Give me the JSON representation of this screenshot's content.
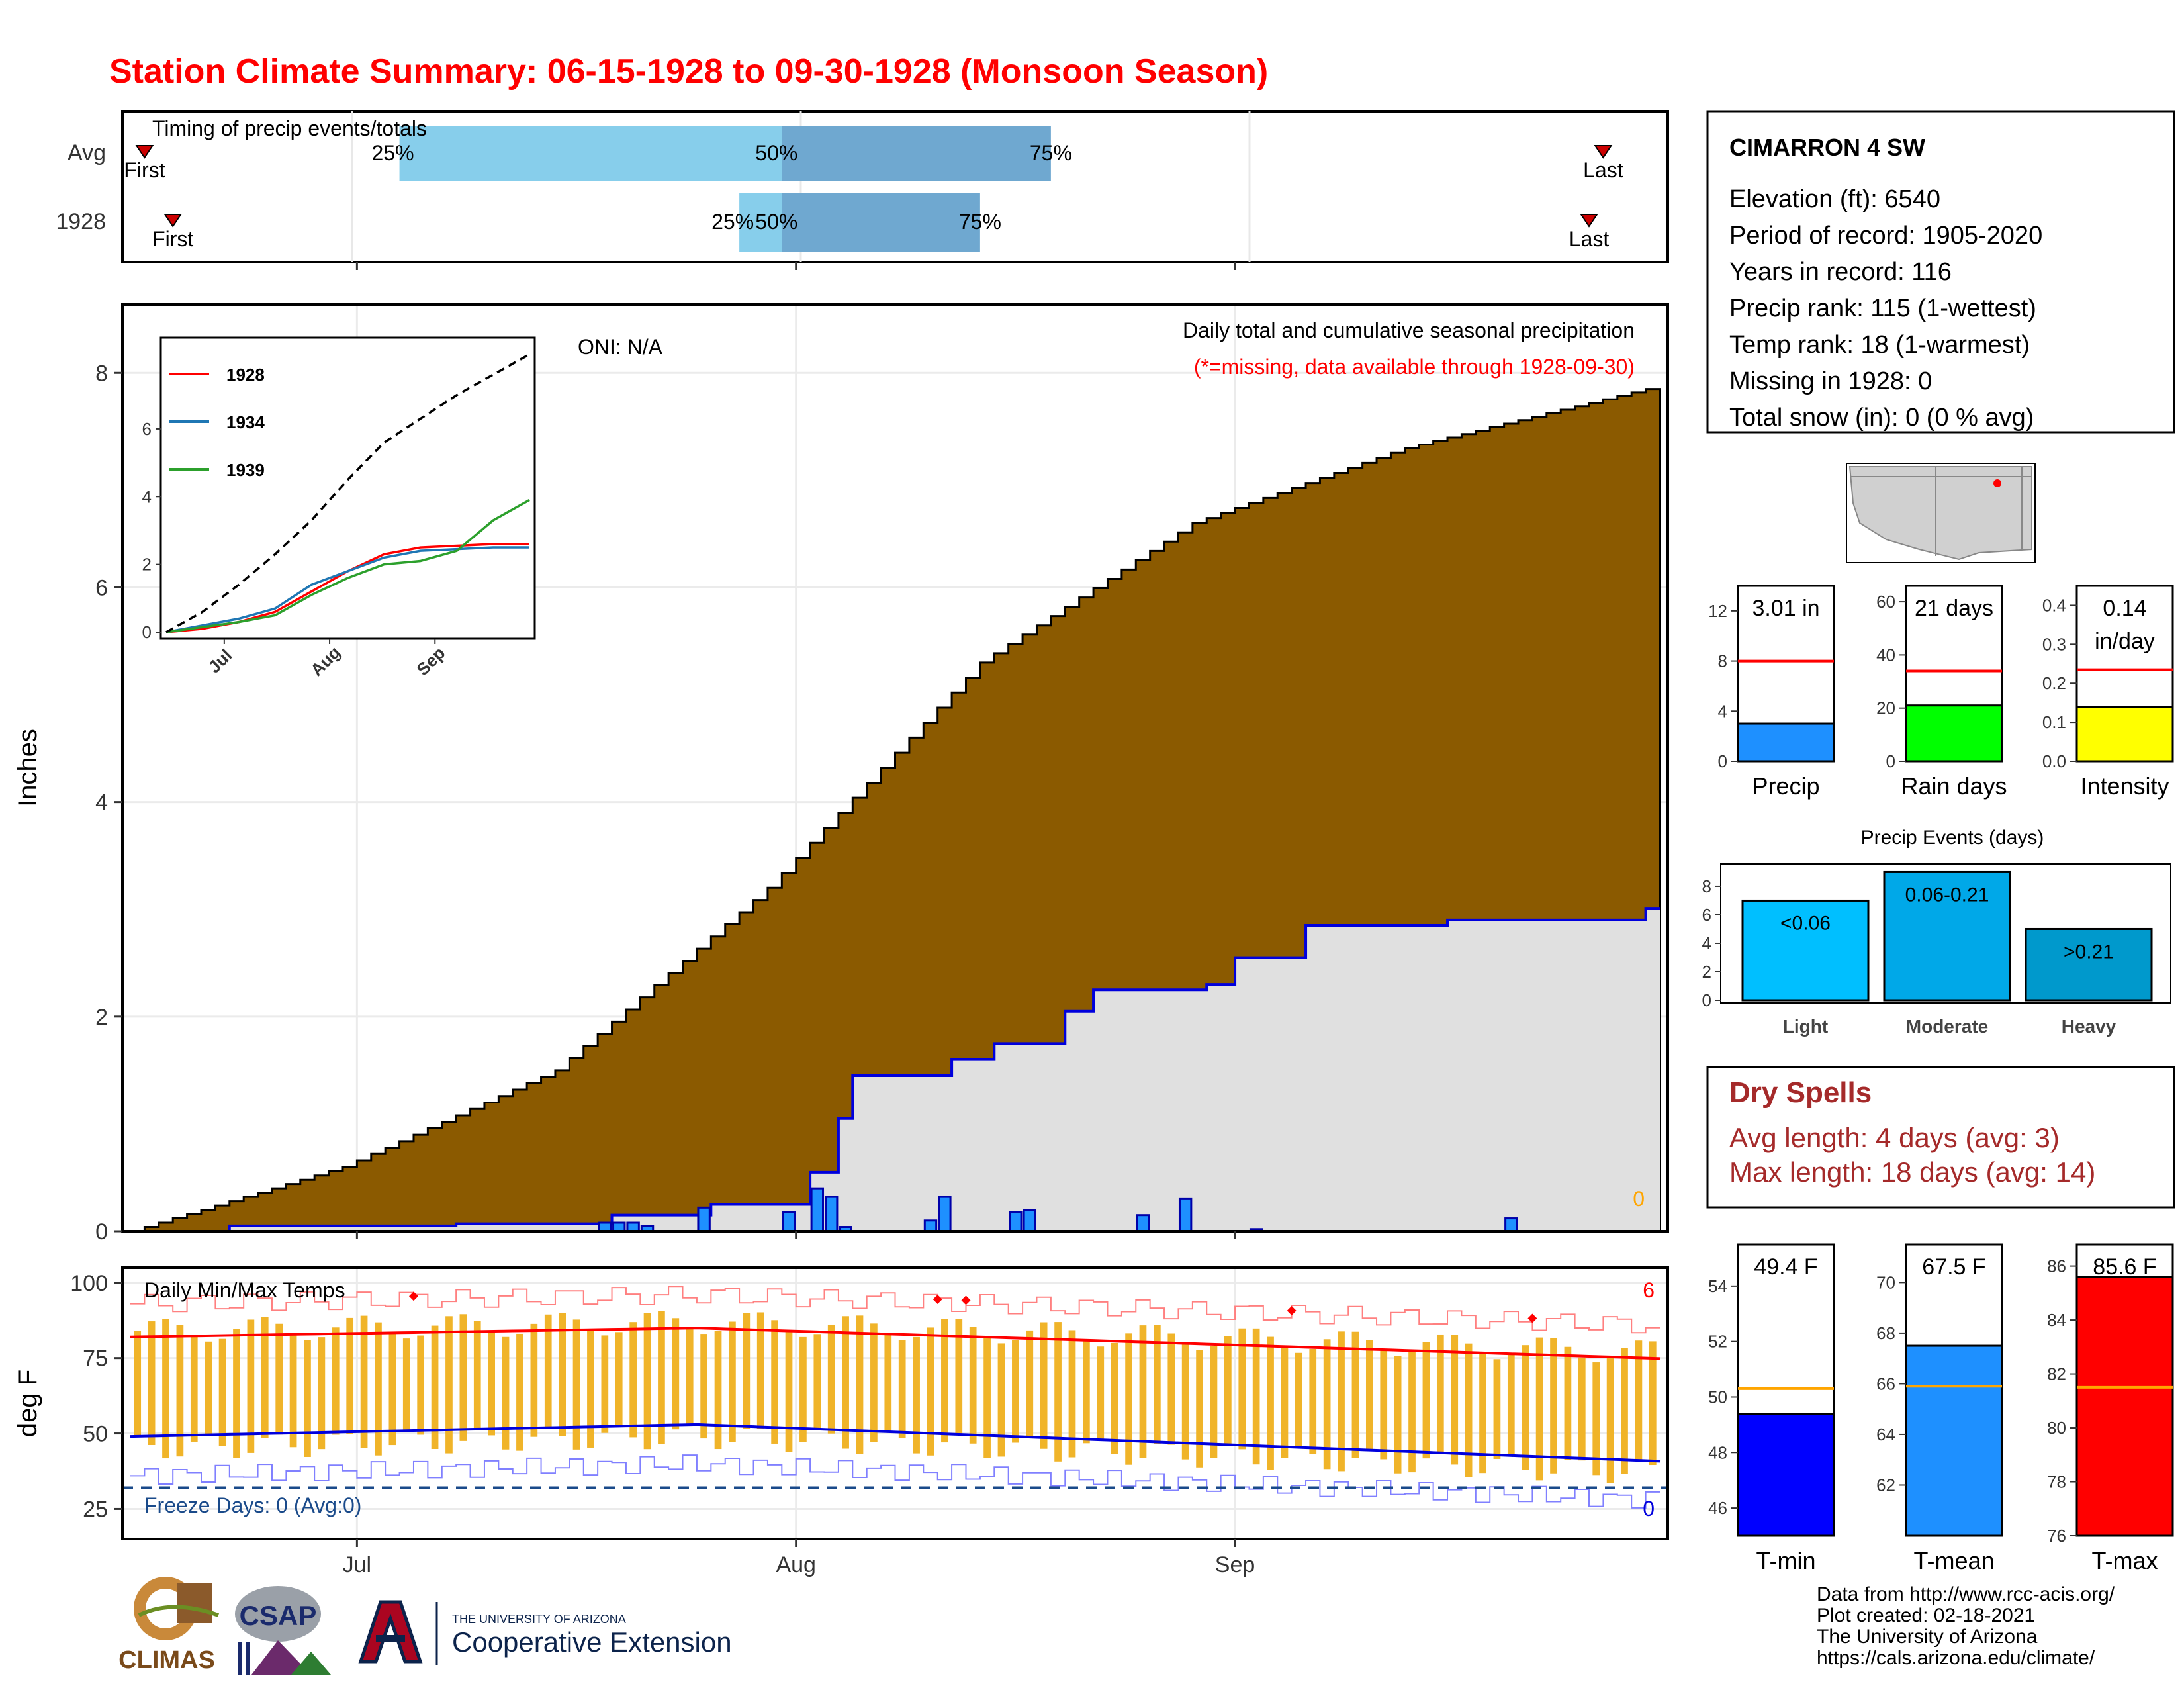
{
  "title": "Station Climate Summary: 06-15-1928 to 09-30-1928 (Monsoon Season)",
  "colors": {
    "title": "#ff0000",
    "cum_avg_fill": "#8b5a00",
    "cum_year_fill": "#e0e0e0",
    "cum_year_line": "#0000dd",
    "daily_bar": "#1e90ff",
    "temp_bar": "#f0b429",
    "tmax_line": "#ff0000",
    "tmin_line": "#0000dd",
    "dry_spells": "#a52a2a"
  },
  "timing_panel": {
    "label": "Timing of precip events/totals",
    "rows": [
      "Avg",
      "1928"
    ],
    "avg": {
      "first_day": "06-16",
      "p25_day": "07-04",
      "p50_day": "07-31",
      "p75_day": "08-19",
      "last_day": "09-27"
    },
    "year": {
      "first_day": "06-18",
      "p25_day": "07-28",
      "p50_day": "07-31",
      "p75_day": "08-14",
      "last_day": "09-26"
    },
    "first_label": "First",
    "last_label": "Last",
    "p25_label": "25%",
    "p50_label": "50%",
    "p75_label": "75%"
  },
  "precip_panel": {
    "ylabel": "Inches",
    "y_ticks": [
      "0",
      "2",
      "4",
      "6",
      "8"
    ],
    "ylim": [
      0,
      8.6
    ],
    "oni": "ONI: N/A",
    "caption": "Daily total and cumulative seasonal precipitation",
    "missing_note": "(*=missing, data available through 1928-09-30)",
    "missing_count": "0",
    "x_ticks": [
      "Jul",
      "Aug",
      "Sep"
    ]
  },
  "inset": {
    "y_ticks": [
      "0",
      "2",
      "4",
      "6"
    ],
    "x_ticks": [
      "Jul",
      "Aug",
      "Sep"
    ],
    "legend": [
      {
        "name": "1928",
        "color": "#ff0000"
      },
      {
        "name": "1934",
        "color": "#1f77b4"
      },
      {
        "name": "1939",
        "color": "#2ca02c"
      }
    ]
  },
  "temp_panel": {
    "label": "Daily Min/Max Temps",
    "ylabel": "deg F",
    "y_ticks": [
      "25",
      "50",
      "75",
      "100"
    ],
    "ylim": [
      15,
      105
    ],
    "freeze": "Freeze Days: 0 (Avg:0)",
    "record_high_count": "6",
    "record_low_count": "0",
    "x_ticks": [
      "Jul",
      "Aug",
      "Sep"
    ]
  },
  "station": {
    "name": "CIMARRON 4 SW",
    "lines": [
      "Elevation (ft): 6540",
      "Period of record: 1905-2020",
      "Years in record: 116",
      "Precip rank: 115 (1-wettest)",
      "Temp rank: 18 (1-warmest)",
      "Missing in 1928: 0",
      "Total snow (in): 0 (0 % avg)"
    ]
  },
  "summary_bars": [
    {
      "id": "precip",
      "label": "Precip",
      "value_text": "3.01 in",
      "value": 3.01,
      "avg": 8.0,
      "ymax": 14,
      "ticks": [
        "0",
        "4",
        "8",
        "12"
      ],
      "tick_vals": [
        0,
        4,
        8,
        12
      ],
      "color": "#1e90ff"
    },
    {
      "id": "raindays",
      "label": "Rain days",
      "value_text": "21 days",
      "value": 21,
      "avg": 34,
      "ymax": 66,
      "ticks": [
        "0",
        "20",
        "40",
        "60"
      ],
      "tick_vals": [
        0,
        20,
        40,
        60
      ],
      "color": "#00ff00"
    },
    {
      "id": "intensity",
      "label": "Intensity",
      "value_text": "0.14",
      "value_text2": "in/day",
      "value": 0.14,
      "avg": 0.235,
      "ymax": 0.45,
      "ticks": [
        "0.0",
        "0.1",
        "0.2",
        "0.3",
        "0.4"
      ],
      "tick_vals": [
        0,
        0.1,
        0.2,
        0.3,
        0.4
      ],
      "color": "#ffff00"
    }
  ],
  "precip_events": {
    "title": "Precip Events (days)",
    "ticks": [
      "0",
      "2",
      "4",
      "6",
      "8"
    ],
    "categories": [
      {
        "name": "Light",
        "bar_text": "<0.06",
        "value": 7,
        "color": "#00bfff"
      },
      {
        "name": "Moderate",
        "bar_text": "0.06-0.21",
        "value": 9,
        "color": "#00a8e8"
      },
      {
        "name": "Heavy",
        "bar_text": ">0.21",
        "value": 5,
        "color": "#0099cc"
      }
    ]
  },
  "dry_spells": {
    "title": "Dry Spells",
    "avg": "Avg length: 4 days (avg: 3)",
    "max": "Max length: 18 days (avg: 14)"
  },
  "temp_bars": [
    {
      "label": "T-min",
      "value_text": "49.4 F",
      "value": 49.4,
      "avg": 50.3,
      "ymin": 45,
      "ymax": 55.5,
      "ticks": [
        "46",
        "48",
        "50",
        "52",
        "54"
      ],
      "tick_vals": [
        46,
        48,
        50,
        52,
        54
      ],
      "color": "#0000ff"
    },
    {
      "label": "T-mean",
      "value_text": "67.5 F",
      "value": 67.5,
      "avg": 65.9,
      "ymin": 60,
      "ymax": 71.5,
      "ticks": [
        "62",
        "64",
        "66",
        "68",
        "70"
      ],
      "tick_vals": [
        62,
        64,
        66,
        68,
        70
      ],
      "color": "#1e90ff"
    },
    {
      "label": "T-max",
      "value_text": "85.6 F",
      "value": 85.6,
      "avg": 81.5,
      "ymin": 76,
      "ymax": 86.8,
      "ticks": [
        "76",
        "78",
        "80",
        "82",
        "84",
        "86"
      ],
      "tick_vals": [
        76,
        78,
        80,
        82,
        84,
        86
      ],
      "color": "#ff0000"
    }
  ],
  "credits": [
    "Data from http://www.rcc-acis.org/",
    "Plot created: 02-18-2021",
    "The University of Arizona",
    "https://cals.arizona.edu/climate/"
  ],
  "logos": {
    "climas": "CLIMAS",
    "csap": "CSAP",
    "ua_small": "THE UNIVERSITY OF ARIZONA",
    "ua_big": "Cooperative Extension"
  },
  "chart_data": [
    {
      "type": "area",
      "name": "cumulative-precipitation",
      "x_start": "1928-06-15",
      "x_end": "1928-09-30",
      "series": [
        {
          "name": "avg_cumulative",
          "x_days": [
            0,
            15,
            30,
            45,
            60,
            75,
            90,
            107
          ],
          "values": [
            0,
            0.6,
            1.5,
            3.2,
            5.3,
            6.6,
            7.3,
            7.85
          ]
        },
        {
          "name": "1928_cumulative",
          "x_days": [
            0,
            7,
            23,
            34,
            41,
            48,
            50,
            51,
            58,
            61,
            66,
            68,
            76,
            78,
            83,
            93,
            107
          ],
          "values": [
            0,
            0.05,
            0.07,
            0.15,
            0.25,
            0.55,
            1.05,
            1.45,
            1.6,
            1.75,
            2.05,
            2.25,
            2.3,
            2.55,
            2.85,
            2.9,
            3.01
          ]
        }
      ],
      "daily_bars": [
        {
          "day": 33,
          "value": 0.08
        },
        {
          "day": 34,
          "value": 0.08
        },
        {
          "day": 35,
          "value": 0.08
        },
        {
          "day": 36,
          "value": 0.05
        },
        {
          "day": 40,
          "value": 0.22
        },
        {
          "day": 46,
          "value": 0.18
        },
        {
          "day": 48,
          "value": 0.4
        },
        {
          "day": 49,
          "value": 0.32
        },
        {
          "day": 50,
          "value": 0.04
        },
        {
          "day": 56,
          "value": 0.1
        },
        {
          "day": 57,
          "value": 0.32
        },
        {
          "day": 62,
          "value": 0.18
        },
        {
          "day": 63,
          "value": 0.2
        },
        {
          "day": 71,
          "value": 0.15
        },
        {
          "day": 74,
          "value": 0.3
        },
        {
          "day": 79,
          "value": 0.02
        },
        {
          "day": 97,
          "value": 0.12
        }
      ]
    },
    {
      "type": "line",
      "name": "inset-cumulative",
      "series": [
        {
          "name": "1928",
          "values": [
            0,
            0.1,
            0.3,
            0.6,
            1.2,
            1.8,
            2.3,
            2.5,
            2.55,
            2.6,
            2.6
          ]
        },
        {
          "name": "1934",
          "values": [
            0,
            0.2,
            0.4,
            0.7,
            1.4,
            1.8,
            2.2,
            2.4,
            2.45,
            2.5,
            2.5
          ]
        },
        {
          "name": "1939",
          "values": [
            0,
            0.15,
            0.3,
            0.5,
            1.1,
            1.6,
            2.0,
            2.1,
            2.4,
            3.3,
            3.9
          ]
        },
        {
          "name": "avg",
          "values": [
            0,
            0.6,
            1.4,
            2.3,
            3.3,
            4.5,
            5.6,
            6.3,
            7.0,
            7.6,
            8.2
          ]
        }
      ]
    },
    {
      "type": "bar",
      "name": "daily-temps",
      "tmax_avg": {
        "start": 82,
        "peak": 85,
        "end": 75
      },
      "tmin_avg": {
        "start": 49,
        "peak": 53,
        "end": 41
      }
    }
  ]
}
